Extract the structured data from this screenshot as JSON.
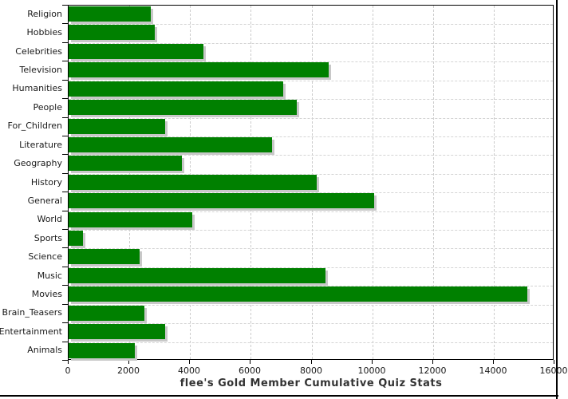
{
  "chart_data": {
    "type": "bar",
    "orientation": "horizontal",
    "title": "flee's Gold Member Cumulative Quiz Stats",
    "categories": [
      "Religion",
      "Hobbies",
      "Celebrities",
      "Television",
      "Humanities",
      "People",
      "For_Children",
      "Literature",
      "Geography",
      "History",
      "General",
      "World",
      "Sports",
      "Science",
      "Music",
      "Movies",
      "Brain_Teasers",
      "Entertainment",
      "Animals"
    ],
    "values": [
      2700,
      2830,
      4440,
      8560,
      7070,
      7510,
      3180,
      6700,
      3720,
      8170,
      10050,
      4070,
      480,
      2330,
      8470,
      15100,
      2500,
      3180,
      2170
    ],
    "xlim": [
      0,
      16000
    ],
    "xtick_labels": [
      "0",
      "2000",
      "4000",
      "6000",
      "8000",
      "10000",
      "12000",
      "14000",
      "16000"
    ],
    "xtick_values": [
      0,
      2000,
      4000,
      6000,
      8000,
      10000,
      12000,
      14000,
      16000
    ],
    "grid": "on",
    "legend": "none",
    "bar_color": "#008000",
    "bar_shadow_color": "#c8c8c8",
    "gridline_color": "#cccccc",
    "frame_color": "#000000",
    "title_color": "#333333",
    "background_color": "#ffffff"
  }
}
